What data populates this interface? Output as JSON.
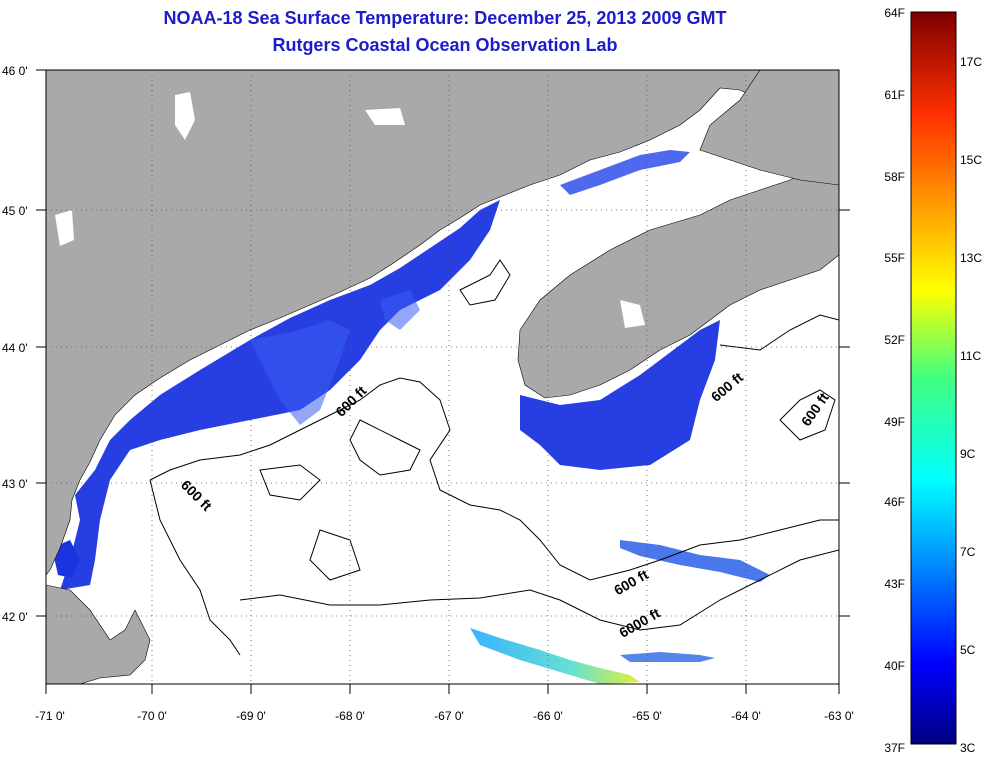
{
  "title": {
    "line1": "NOAA-18 Sea Surface Temperature:  December 25, 2013 2009 GMT",
    "line2": "Rutgers Coastal Ocean Observation Lab"
  },
  "axes": {
    "longitude_labels": [
      "-71 0'",
      "-70 0'",
      "-69 0'",
      "-68 0'",
      "-67 0'",
      "-66 0'",
      "-65 0'",
      "-64 0'",
      "-63 0'"
    ],
    "latitude_labels": [
      "46 0'",
      "45 0'",
      "44 0'",
      "43 0'",
      "42 0'"
    ],
    "lon_range": [
      -71,
      -63
    ],
    "lat_range": [
      41.5,
      46
    ],
    "grid": "dotted"
  },
  "contour_labels": [
    "600 ft",
    "600 ft",
    "600 ft",
    "600 ft",
    "600 ft",
    "6000 ft"
  ],
  "colorbar": {
    "fahrenheit_labels": [
      "64F",
      "61F",
      "58F",
      "55F",
      "52F",
      "49F",
      "46F",
      "43F",
      "40F",
      "37F"
    ],
    "celsius_labels": [
      "17C",
      "15C",
      "13C",
      "11C",
      "9C",
      "7C",
      "5C",
      "3C"
    ],
    "range_F": [
      37,
      64
    ],
    "range_C": [
      3,
      18
    ]
  },
  "colors": {
    "land": "#a9a9a9",
    "ocean_no_data": "#ffffff",
    "title": "#1c1cc8",
    "sst_cold": "#1a2fd8"
  }
}
